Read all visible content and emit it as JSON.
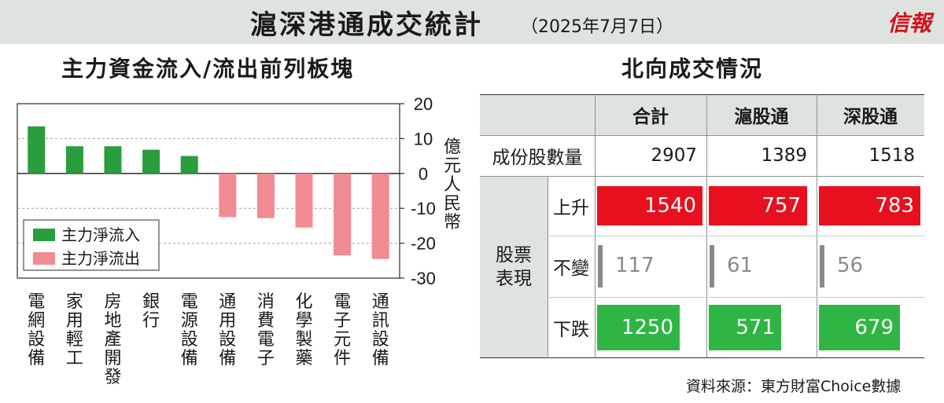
{
  "header": {
    "title": "滬深港通成交統計",
    "date": "（2025年7月7日）",
    "brand": "信報",
    "brand_color": "#d0111b"
  },
  "left_panel": {
    "title": "主力資金流入/流出前列板塊"
  },
  "right_panel": {
    "title": "北向成交情況"
  },
  "chart_data": {
    "type": "bar",
    "title": "主力資金流入/流出前列板塊",
    "ylabel": "億元人民幣",
    "ylim": [
      -30,
      20
    ],
    "yticks": [
      20,
      10,
      0,
      -10,
      -20,
      -30
    ],
    "grid": true,
    "legend_position": "bottom-left",
    "categories": [
      "電網設備",
      "家用輕工",
      "房地產開發",
      "銀行",
      "電源設備",
      "通用設備",
      "消費電子",
      "化學製藥",
      "電子元件",
      "通訊設備"
    ],
    "series": [
      {
        "name": "主力淨流入",
        "color": "#2a9d3c",
        "values": [
          13.5,
          7.8,
          7.8,
          6.8,
          5.0,
          null,
          null,
          null,
          null,
          null
        ]
      },
      {
        "name": "主力淨流出",
        "color": "#f08a93",
        "values": [
          null,
          null,
          null,
          null,
          null,
          -12.5,
          -12.8,
          -15.5,
          -23.5,
          -24.5
        ]
      }
    ]
  },
  "table": {
    "columns": [
      "合計",
      "滬股通",
      "深股通"
    ],
    "constituents_label": "成份股數量",
    "constituents": [
      "2907",
      "1389",
      "1518"
    ],
    "group_label": "股票表現",
    "rows": [
      {
        "label": "上升",
        "kind": "up",
        "values": [
          "1540",
          "757",
          "783"
        ],
        "fractions": [
          1.0,
          0.95,
          1.0
        ]
      },
      {
        "label": "不變",
        "kind": "flat",
        "values": [
          "117",
          "61",
          "56"
        ]
      },
      {
        "label": "下跌",
        "kind": "down",
        "values": [
          "1250",
          "571",
          "679"
        ],
        "fractions": [
          0.78,
          0.7,
          0.8
        ]
      }
    ],
    "colors": {
      "up": "#e8101e",
      "down": "#2fb544",
      "flat": "#8a8a8a",
      "header_bg": "#dfe3e0"
    }
  },
  "source": "資料來源：東方財富Choice數據"
}
